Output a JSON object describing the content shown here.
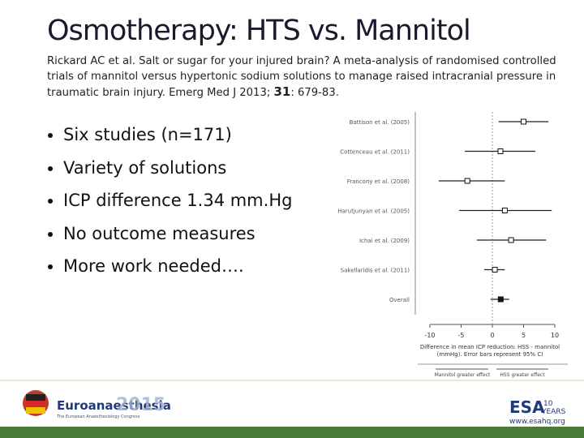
{
  "header": {
    "title": "Osmotherapy: HTS vs. Mannitol",
    "citation": {
      "text": "Rickard AC et al. Salt or sugar for your injured brain? A meta-analysis of randomised controlled trials of mannitol versus hypertonic sodium solutions to manage raised intracranial pressure in traumatic brain injury. Emerg Med J 2013;",
      "volume": "31",
      "pages": ": 679-83."
    }
  },
  "bullets": [
    "Six studies (n=171)",
    "Variety of solutions",
    "ICP difference 1.34 mm.Hg",
    "No outcome measures",
    "More work needed…."
  ],
  "forest_plot": {
    "studies": [
      {
        "label": "Battison et al. (2005)",
        "estimate": 5.0,
        "ci_low": 1.0,
        "ci_high": 9.0
      },
      {
        "label": "Cottenceau et al. (2011)",
        "estimate": 1.3,
        "ci_low": -4.4,
        "ci_high": 6.9
      },
      {
        "label": "Francony et al. (2008)",
        "estimate": -4.0,
        "ci_low": -8.6,
        "ci_high": 2.0
      },
      {
        "label": "Harutjunyan et al. (2005)",
        "estimate": 2.0,
        "ci_low": -5.3,
        "ci_high": 9.5
      },
      {
        "label": "Ichai et al. (2009)",
        "estimate": 3.0,
        "ci_low": -2.5,
        "ci_high": 8.6
      },
      {
        "label": "Sakellaridis et al. (2011)",
        "estimate": 0.4,
        "ci_low": -1.3,
        "ci_high": 2.0
      },
      {
        "label": "Overall",
        "estimate": 1.34,
        "ci_low": -0.3,
        "ci_high": 2.7
      }
    ],
    "xlim": [
      -10,
      10
    ],
    "xticks": [
      -10,
      -5,
      0,
      5,
      10
    ],
    "x_label": [
      "Difference in mean ICP reduction: HSS - mannitol",
      "(mmHg). Error bars represent 95% CI"
    ],
    "direction_left": "Mannitol greater effect",
    "direction_right": "HSS greater effect"
  },
  "footer": {
    "congress": "Euroanaesthesia",
    "year": "2015",
    "congress_sub": "The European Anaesthesiology Congress",
    "org": "ESA",
    "anniversary": "10",
    "years": "YEARS",
    "url": "www.esahq.org"
  }
}
